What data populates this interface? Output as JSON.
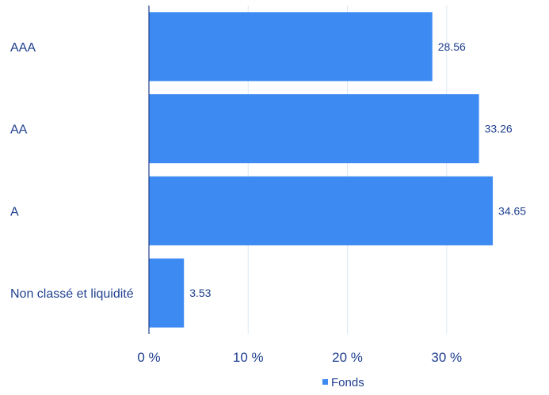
{
  "chart_data": {
    "type": "bar",
    "orientation": "horizontal",
    "categories": [
      "AAA",
      "AA",
      "A",
      "Non classé et liquidité"
    ],
    "series": [
      {
        "name": "Fonds",
        "values": [
          28.56,
          33.26,
          34.65,
          3.53
        ],
        "color": "#3d8bf2"
      }
    ],
    "data_labels": [
      "28.56",
      "33.26",
      "34.65",
      "3.53"
    ],
    "x_ticks": [
      0,
      10,
      20,
      30
    ],
    "x_tick_labels": [
      "0 %",
      "10 %",
      "20 %",
      "30 %"
    ],
    "xlim": [
      0,
      38
    ],
    "grid": true,
    "legend": {
      "position": "bottom",
      "entries": [
        "Fonds"
      ]
    },
    "title": "",
    "xlabel": "",
    "ylabel": ""
  }
}
